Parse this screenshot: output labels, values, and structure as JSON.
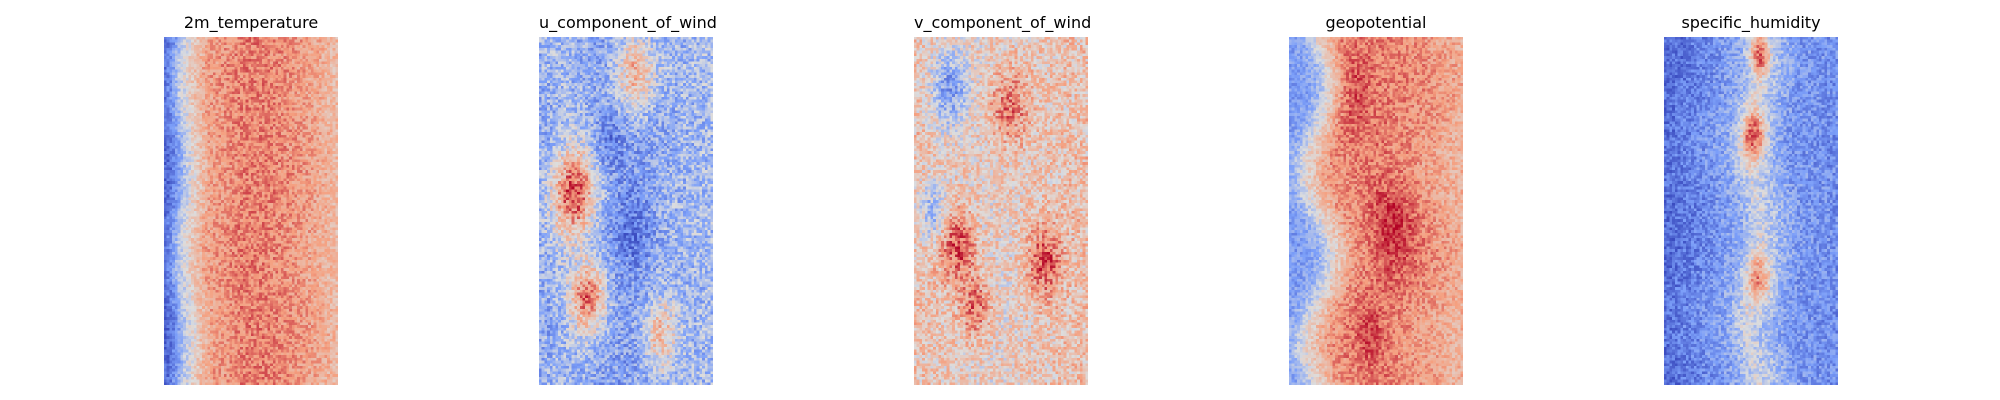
{
  "chart_data": [
    {
      "type": "heatmap",
      "title": "2m_temperature",
      "colormap": "coolwarm",
      "axis": "off",
      "grid": false,
      "pattern": {
        "base_profile": [
          [
            0,
            0.08
          ],
          [
            0.05,
            0.22
          ],
          [
            0.1,
            0.42
          ],
          [
            0.18,
            0.6
          ],
          [
            0.25,
            0.72
          ],
          [
            0.45,
            0.8
          ],
          [
            0.6,
            0.8
          ],
          [
            0.8,
            0.74
          ],
          [
            1.0,
            0.65
          ]
        ],
        "noise": 0.1,
        "hotspots": [],
        "waviness": 0.02
      }
    },
    {
      "type": "heatmap",
      "title": "u_component_of_wind",
      "colormap": "coolwarm",
      "axis": "off",
      "grid": false,
      "pattern": {
        "base_profile": [
          [
            0,
            0.3
          ],
          [
            0.15,
            0.36
          ],
          [
            0.4,
            0.28
          ],
          [
            0.55,
            0.26
          ],
          [
            0.75,
            0.33
          ],
          [
            1.0,
            0.36
          ]
        ],
        "noise": 0.16,
        "hotspots": [
          [
            0.2,
            0.45,
            0.09,
            0.55
          ],
          [
            0.28,
            0.75,
            0.07,
            0.5
          ],
          [
            0.55,
            0.1,
            0.08,
            0.4
          ],
          [
            0.4,
            0.3,
            0.06,
            -0.15
          ],
          [
            0.55,
            0.55,
            0.08,
            -0.15
          ],
          [
            0.7,
            0.85,
            0.07,
            0.35
          ]
        ],
        "waviness": 0.05
      }
    },
    {
      "type": "heatmap",
      "title": "v_component_of_wind",
      "colormap": "coolwarm",
      "axis": "off",
      "grid": false,
      "pattern": {
        "base_profile": [
          [
            0,
            0.62
          ],
          [
            0.3,
            0.58
          ],
          [
            0.5,
            0.55
          ],
          [
            0.75,
            0.6
          ],
          [
            1.0,
            0.62
          ]
        ],
        "noise": 0.16,
        "hotspots": [
          [
            0.2,
            0.15,
            0.08,
            -0.35
          ],
          [
            0.25,
            0.6,
            0.07,
            0.3
          ],
          [
            0.55,
            0.2,
            0.08,
            0.25
          ],
          [
            0.75,
            0.65,
            0.07,
            0.3
          ],
          [
            0.35,
            0.78,
            0.06,
            0.25
          ],
          [
            0.1,
            0.5,
            0.06,
            -0.25
          ]
        ],
        "waviness": 0.05
      }
    },
    {
      "type": "heatmap",
      "title": "geopotential",
      "colormap": "coolwarm",
      "axis": "off",
      "grid": false,
      "pattern": {
        "base_profile": [
          [
            0,
            0.25
          ],
          [
            0.08,
            0.32
          ],
          [
            0.18,
            0.55
          ],
          [
            0.3,
            0.74
          ],
          [
            0.55,
            0.8
          ],
          [
            0.75,
            0.76
          ],
          [
            1.0,
            0.68
          ]
        ],
        "noise": 0.1,
        "hotspots": [
          [
            0.35,
            0.15,
            0.1,
            0.15
          ],
          [
            0.6,
            0.55,
            0.1,
            0.15
          ],
          [
            0.45,
            0.85,
            0.08,
            0.1
          ]
        ],
        "waviness": 0.08
      }
    },
    {
      "type": "heatmap",
      "title": "specific_humidity",
      "colormap": "coolwarm",
      "axis": "off",
      "grid": false,
      "pattern": {
        "base_profile": [
          [
            0,
            0.1
          ],
          [
            0.2,
            0.18
          ],
          [
            0.4,
            0.3
          ],
          [
            0.52,
            0.48
          ],
          [
            0.58,
            0.4
          ],
          [
            0.75,
            0.24
          ],
          [
            1.0,
            0.2
          ]
        ],
        "noise": 0.12,
        "hotspots": [
          [
            0.52,
            0.28,
            0.05,
            0.45
          ],
          [
            0.55,
            0.7,
            0.05,
            0.35
          ],
          [
            0.55,
            0.05,
            0.04,
            0.4
          ]
        ],
        "waviness": 0.04
      }
    }
  ]
}
